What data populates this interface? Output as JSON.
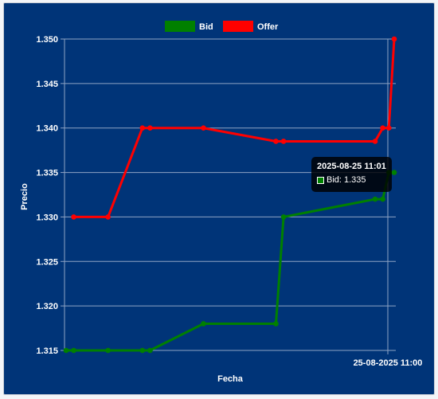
{
  "chart_data": {
    "type": "line",
    "xlabel": "Fecha",
    "ylabel": "Precio",
    "ylim": [
      1.315,
      1.35
    ],
    "y_ticks": [
      "1.315",
      "1.320",
      "1.325",
      "1.330",
      "1.335",
      "1.340",
      "1.345",
      "1.350"
    ],
    "x_tick_labels": [
      "25-08-2025 11:00"
    ],
    "grid": true,
    "legend_position": "top",
    "series": [
      {
        "name": "Bid",
        "color": "#008000",
        "x": [
          0,
          1,
          5.5,
          10,
          11,
          18,
          27.5,
          28.5,
          40.5,
          41.5,
          42.3,
          43
        ],
        "values": [
          1.315,
          1.315,
          1.315,
          1.315,
          1.315,
          1.318,
          1.318,
          1.33,
          1.332,
          1.332,
          1.335,
          1.335
        ]
      },
      {
        "name": "Offer",
        "color": "#ff0000",
        "x": [
          1,
          5.5,
          10,
          11,
          18,
          27.5,
          28.5,
          40.5,
          41.5,
          42.3,
          43
        ],
        "values": [
          1.33,
          1.33,
          1.34,
          1.34,
          1.34,
          1.3385,
          1.3385,
          1.3385,
          1.34,
          1.34,
          1.35
        ]
      }
    ],
    "tooltip": {
      "title": "2025-08-25 11:01",
      "line": "Bid: 1.335"
    }
  }
}
